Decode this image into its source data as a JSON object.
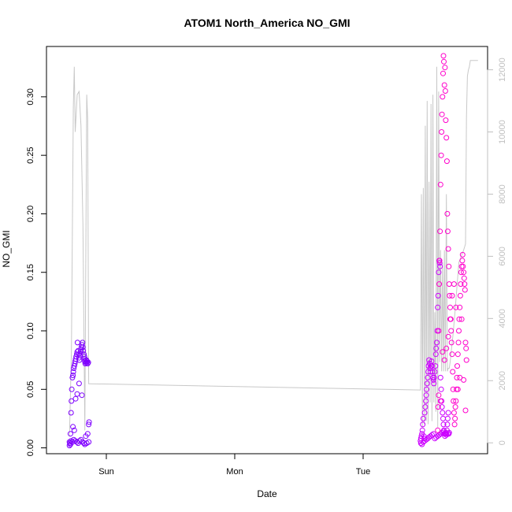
{
  "chart_data": {
    "type": "scatter",
    "title": "ATOM1 North_America NO_GMI",
    "xlabel": "Date",
    "ylabel": "NO_GMI",
    "x_tick_labels": [
      "Sun",
      "Mon",
      "Tue"
    ],
    "y_ticks": [
      0.0,
      0.05,
      0.1,
      0.15,
      0.2,
      0.25,
      0.3
    ],
    "y_tick_labels": [
      "0.00",
      "0.05",
      "0.10",
      "0.15",
      "0.20",
      "0.25",
      "0.30"
    ],
    "ylim": [
      -0.005,
      0.343
    ],
    "xlim_days_since_saturday": [
      0.6,
      2.9
    ],
    "y2_ticks": [
      0,
      2000,
      4000,
      6000,
      8000,
      10000,
      12000
    ],
    "y2_tick_labels": [
      "0",
      "2000",
      "4000",
      "6000",
      "8000",
      "10000",
      "12000"
    ],
    "y2lim": [
      -350,
      12750
    ],
    "colors": {
      "early": "#7f00ff",
      "mid": "#cc00ff",
      "late": "#ff00cc",
      "altitude_line": "#c8c8c8",
      "axis": "#000000",
      "secondary_axis": "#c0c0c0"
    },
    "scatter_groups": [
      {
        "color": "#7f00ff",
        "x": [
          0.72,
          0.72,
          0.725,
          0.725,
          0.728,
          0.73,
          0.732,
          0.735,
          0.738,
          0.74,
          0.742,
          0.745,
          0.748,
          0.75,
          0.752,
          0.755,
          0.758,
          0.76,
          0.762,
          0.765,
          0.768,
          0.77,
          0.772,
          0.775,
          0.778,
          0.78,
          0.782,
          0.785,
          0.788,
          0.79,
          0.792,
          0.795,
          0.798,
          0.8,
          0.8,
          0.802,
          0.805,
          0.808,
          0.81,
          0.812,
          0.815,
          0.818,
          0.82,
          0.822,
          0.722,
          0.728,
          0.735,
          0.742,
          0.75,
          0.758,
          0.765,
          0.772,
          0.78,
          0.788,
          0.795,
          0.8,
          0.81,
          0.82,
          0.738,
          0.745,
          0.752,
          0.76,
          0.77,
          0.785,
          0.805,
          0.815
        ],
        "y": [
          0.002,
          0.005,
          0.003,
          0.012,
          0.03,
          0.04,
          0.05,
          0.06,
          0.062,
          0.065,
          0.068,
          0.07,
          0.072,
          0.074,
          0.076,
          0.078,
          0.08,
          0.082,
          0.09,
          0.083,
          0.08,
          0.077,
          0.075,
          0.079,
          0.082,
          0.084,
          0.086,
          0.088,
          0.09,
          0.086,
          0.083,
          0.08,
          0.078,
          0.076,
          0.074,
          0.072,
          0.073,
          0.075,
          0.073,
          0.074,
          0.072,
          0.073,
          0.02,
          0.022,
          0.004,
          0.006,
          0.005,
          0.007,
          0.006,
          0.005,
          0.004,
          0.006,
          0.007,
          0.005,
          0.004,
          0.003,
          0.004,
          0.005,
          0.018,
          0.015,
          0.042,
          0.046,
          0.055,
          0.045,
          0.01,
          0.012
        ]
      },
      {
        "color": "#cc00ff",
        "x": [
          2.55,
          2.552,
          2.555,
          2.558,
          2.56,
          2.562,
          2.565,
          2.568,
          2.57,
          2.572,
          2.575,
          2.578,
          2.58,
          2.582,
          2.585,
          2.588,
          2.59,
          2.592,
          2.595,
          2.598,
          2.6,
          2.602,
          2.605,
          2.608,
          2.61,
          2.612,
          2.615,
          2.618,
          2.62,
          2.622,
          2.625,
          2.628,
          2.63,
          2.632,
          2.635,
          2.638,
          2.64,
          2.642,
          2.645,
          2.648,
          2.65,
          2.652,
          2.655,
          2.658,
          2.66,
          2.662,
          2.665,
          2.668,
          2.67,
          2.672,
          2.675,
          2.678,
          2.68,
          2.682,
          2.685,
          2.688,
          2.69,
          2.692,
          2.695,
          2.698,
          2.7,
          2.552,
          2.558,
          2.565,
          2.572,
          2.58,
          2.588,
          2.595,
          2.602,
          2.61,
          2.618,
          2.625,
          2.632,
          2.64,
          2.648,
          2.655,
          2.662,
          2.67,
          2.678,
          2.685,
          2.692
        ],
        "y": [
          0.006,
          0.008,
          0.01,
          0.012,
          0.015,
          0.02,
          0.025,
          0.01,
          0.008,
          0.03,
          0.035,
          0.04,
          0.045,
          0.05,
          0.055,
          0.06,
          0.065,
          0.07,
          0.075,
          0.072,
          0.068,
          0.065,
          0.07,
          0.074,
          0.07,
          0.065,
          0.06,
          0.058,
          0.055,
          0.06,
          0.065,
          0.07,
          0.08,
          0.085,
          0.09,
          0.1,
          0.12,
          0.13,
          0.15,
          0.16,
          0.158,
          0.155,
          0.06,
          0.05,
          0.04,
          0.035,
          0.03,
          0.025,
          0.02,
          0.015,
          0.012,
          0.01,
          0.012,
          0.013,
          0.012,
          0.015,
          0.02,
          0.025,
          0.03,
          0.012,
          0.013,
          0.004,
          0.003,
          0.005,
          0.006,
          0.007,
          0.008,
          0.009,
          0.01,
          0.011,
          0.012,
          0.008,
          0.009,
          0.01,
          0.011,
          0.012,
          0.013,
          0.014,
          0.012,
          0.011,
          0.012
        ]
      },
      {
        "color": "#ff00cc",
        "x": [
          2.64,
          2.642,
          2.645,
          2.648,
          2.65,
          2.652,
          2.655,
          2.658,
          2.66,
          2.662,
          2.665,
          2.668,
          2.67,
          2.672,
          2.675,
          2.678,
          2.68,
          2.682,
          2.685,
          2.688,
          2.69,
          2.692,
          2.695,
          2.698,
          2.7,
          2.702,
          2.705,
          2.708,
          2.71,
          2.712,
          2.715,
          2.718,
          2.72,
          2.722,
          2.725,
          2.728,
          2.73,
          2.732,
          2.735,
          2.738,
          2.74,
          2.742,
          2.745,
          2.748,
          2.75,
          2.752,
          2.755,
          2.758,
          2.76,
          2.762,
          2.765,
          2.768,
          2.77,
          2.772,
          2.775,
          2.778,
          2.78,
          2.782,
          2.785,
          2.788,
          2.79,
          2.645,
          2.655,
          2.665,
          2.675,
          2.685,
          2.695,
          2.705,
          2.715,
          2.725,
          2.735,
          2.745,
          2.755,
          2.765,
          2.775,
          2.785
        ],
        "y": [
          0.015,
          0.035,
          0.1,
          0.14,
          0.16,
          0.185,
          0.225,
          0.25,
          0.27,
          0.285,
          0.3,
          0.32,
          0.335,
          0.33,
          0.31,
          0.325,
          0.305,
          0.28,
          0.265,
          0.245,
          0.2,
          0.185,
          0.17,
          0.155,
          0.14,
          0.13,
          0.12,
          0.11,
          0.1,
          0.09,
          0.08,
          0.065,
          0.05,
          0.04,
          0.03,
          0.02,
          0.025,
          0.035,
          0.04,
          0.05,
          0.06,
          0.07,
          0.08,
          0.09,
          0.1,
          0.11,
          0.12,
          0.13,
          0.14,
          0.15,
          0.155,
          0.16,
          0.165,
          0.155,
          0.15,
          0.145,
          0.14,
          0.135,
          0.09,
          0.085,
          0.075,
          0.045,
          0.04,
          0.082,
          0.075,
          0.085,
          0.095,
          0.11,
          0.13,
          0.14,
          0.12,
          0.05,
          0.06,
          0.11,
          0.058,
          0.032
        ]
      }
    ],
    "altitude_line": {
      "x": [
        0.72,
        0.73,
        0.74,
        0.745,
        0.75,
        0.76,
        0.77,
        0.78,
        0.79,
        0.8,
        0.81,
        0.815,
        0.82,
        0.83,
        2.55,
        2.555,
        2.56,
        2.565,
        2.57,
        2.575,
        2.58,
        2.585,
        2.59,
        2.595,
        2.6,
        2.605,
        2.61,
        2.615,
        2.62,
        2.625,
        2.63,
        2.635,
        2.64,
        2.645,
        2.65,
        2.655,
        2.66,
        2.665,
        2.67,
        2.675,
        2.68,
        2.685,
        2.69,
        2.695,
        2.7,
        2.705,
        2.71,
        2.72,
        2.73,
        2.75,
        2.775,
        2.78,
        2.785,
        2.79,
        2.795,
        2.8,
        2.805,
        2.81,
        2.815,
        2.82,
        2.83,
        2.85
      ],
      "y": [
        200,
        3000,
        10800,
        12100,
        10000,
        11200,
        11300,
        10200,
        7000,
        400,
        11200,
        10400,
        1900,
        1900,
        1700,
        8000,
        500,
        8200,
        600,
        10200,
        700,
        11000,
        600,
        8400,
        1300,
        10900,
        700,
        11200,
        1300,
        4200,
        1000,
        12100,
        500,
        11300,
        2600,
        6200,
        2300,
        5800,
        2300,
        6200,
        2300,
        8000,
        2300,
        2400,
        2400,
        2600,
        2900,
        3500,
        4200,
        5800,
        6200,
        6300,
        6400,
        10500,
        11800,
        12000,
        12100,
        12300,
        12300,
        12300,
        12300,
        12300
      ]
    }
  }
}
